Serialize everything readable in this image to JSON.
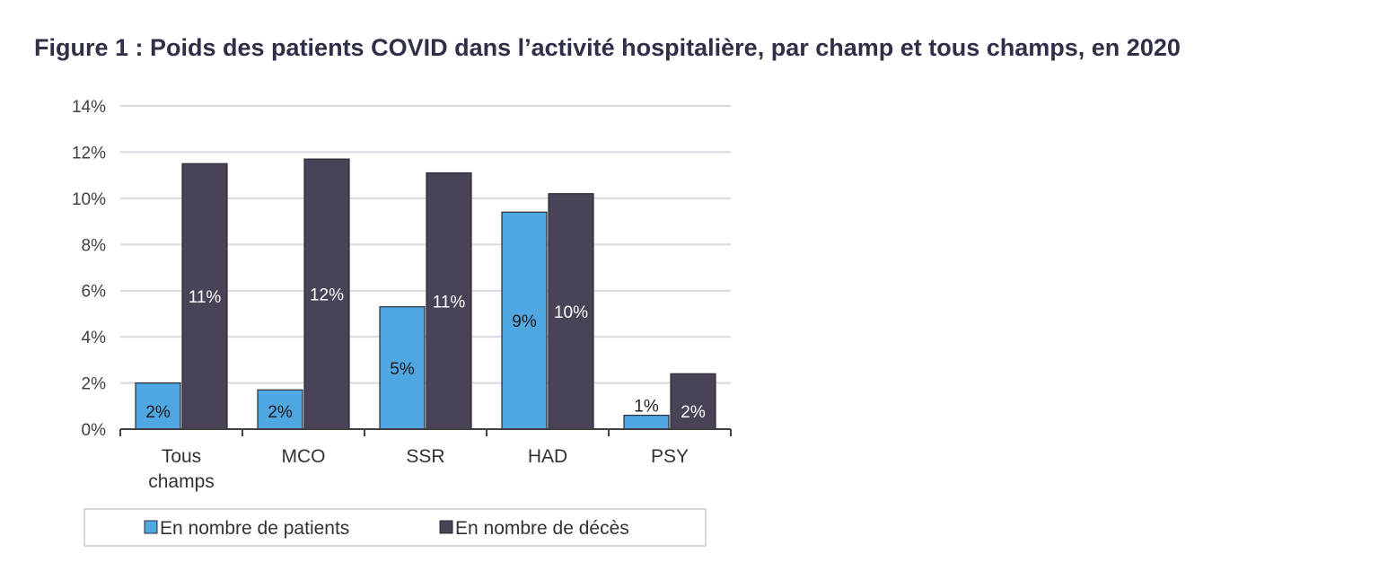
{
  "title": "Figure 1 : Poids des patients COVID dans l’activité hospitalière, par champ et tous champs, en 2020",
  "chart_data": {
    "type": "bar",
    "categories": [
      [
        "Tous",
        "champs"
      ],
      [
        "MCO"
      ],
      [
        "SSR"
      ],
      [
        "HAD"
      ],
      [
        "PSY"
      ]
    ],
    "ylim": [
      0,
      14
    ],
    "yticks": [
      0,
      2,
      4,
      6,
      8,
      10,
      12,
      14
    ],
    "ytick_suffix": "%",
    "grid": true,
    "legend_position": "bottom",
    "series": [
      {
        "name": "En nombre de patients",
        "color": "#4fa8e2",
        "values": [
          2.0,
          1.7,
          5.3,
          9.4,
          0.6
        ],
        "labels": [
          "2%",
          "2%",
          "5%",
          "9%",
          "1%"
        ]
      },
      {
        "name": "En nombre de décès",
        "color": "#4a4358",
        "values": [
          11.5,
          11.7,
          11.1,
          10.2,
          2.4
        ],
        "labels": [
          "11%",
          "12%",
          "11%",
          "10%",
          "2%"
        ]
      }
    ]
  }
}
